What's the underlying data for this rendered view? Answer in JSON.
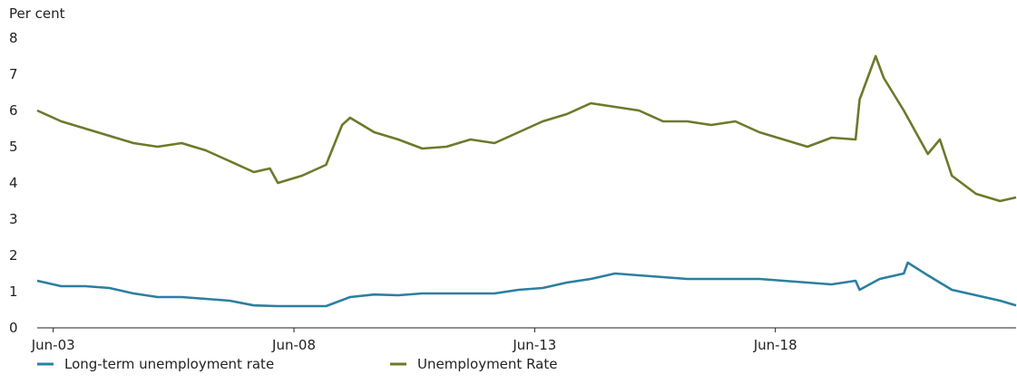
{
  "chart_data": {
    "type": "line",
    "y_unit_label": "Per cent",
    "ylim": [
      0,
      8
    ],
    "y_ticks": [
      "0",
      "1",
      "2",
      "3",
      "4",
      "5",
      "6",
      "7",
      "8"
    ],
    "x_tick_labels": [
      "Jun-03",
      "Jun-08",
      "Jun-13",
      "Jun-18"
    ],
    "x_range": [
      "2003-02",
      "2023-06"
    ],
    "grid": false,
    "legend_position": "bottom-left",
    "series": [
      {
        "name": "Long-term unemployment rate",
        "color": "#2b7fa0",
        "x": [
          "2003-02",
          "2003-08",
          "2004-02",
          "2004-08",
          "2005-02",
          "2005-08",
          "2006-02",
          "2006-08",
          "2007-02",
          "2007-08",
          "2008-02",
          "2008-08",
          "2009-02",
          "2009-08",
          "2010-02",
          "2010-08",
          "2011-02",
          "2011-08",
          "2012-02",
          "2012-08",
          "2013-02",
          "2013-08",
          "2014-02",
          "2014-08",
          "2015-02",
          "2015-08",
          "2016-02",
          "2016-08",
          "2017-02",
          "2017-08",
          "2018-02",
          "2018-08",
          "2019-02",
          "2019-08",
          "2020-02",
          "2020-03",
          "2020-08",
          "2021-02",
          "2021-03",
          "2021-08",
          "2022-02",
          "2022-08",
          "2023-02",
          "2023-06"
        ],
        "values": [
          1.3,
          1.15,
          1.15,
          1.1,
          0.95,
          0.85,
          0.85,
          0.8,
          0.75,
          0.62,
          0.6,
          0.6,
          0.6,
          0.85,
          0.92,
          0.9,
          0.95,
          0.95,
          0.95,
          0.95,
          1.05,
          1.1,
          1.25,
          1.35,
          1.5,
          1.45,
          1.4,
          1.35,
          1.35,
          1.35,
          1.35,
          1.3,
          1.25,
          1.2,
          1.3,
          1.05,
          1.35,
          1.5,
          1.8,
          1.45,
          1.05,
          0.9,
          0.75,
          0.62
        ]
      },
      {
        "name": "Unemployment Rate",
        "color": "#6b7a2a",
        "x": [
          "2003-02",
          "2003-08",
          "2004-02",
          "2004-08",
          "2005-02",
          "2005-08",
          "2006-02",
          "2006-08",
          "2007-02",
          "2007-08",
          "2007-12",
          "2008-02",
          "2008-08",
          "2009-02",
          "2009-06",
          "2009-08",
          "2010-02",
          "2010-08",
          "2011-02",
          "2011-08",
          "2012-02",
          "2012-08",
          "2013-02",
          "2013-08",
          "2014-02",
          "2014-08",
          "2015-02",
          "2015-08",
          "2016-02",
          "2016-08",
          "2017-02",
          "2017-08",
          "2018-02",
          "2018-08",
          "2019-02",
          "2019-08",
          "2020-02",
          "2020-03",
          "2020-07",
          "2020-09",
          "2021-02",
          "2021-08",
          "2021-11",
          "2022-02",
          "2022-08",
          "2023-02",
          "2023-06"
        ],
        "values": [
          6.0,
          5.7,
          5.5,
          5.3,
          5.1,
          5.0,
          5.1,
          4.9,
          4.6,
          4.3,
          4.4,
          4.0,
          4.2,
          4.5,
          5.6,
          5.8,
          5.4,
          5.2,
          4.95,
          5.0,
          5.2,
          5.1,
          5.4,
          5.7,
          5.9,
          6.2,
          6.1,
          6.0,
          5.7,
          5.7,
          5.6,
          5.7,
          5.4,
          5.2,
          5.0,
          5.25,
          5.2,
          6.3,
          7.5,
          6.9,
          6.0,
          4.8,
          5.2,
          4.2,
          3.7,
          3.5,
          3.6
        ]
      }
    ]
  }
}
